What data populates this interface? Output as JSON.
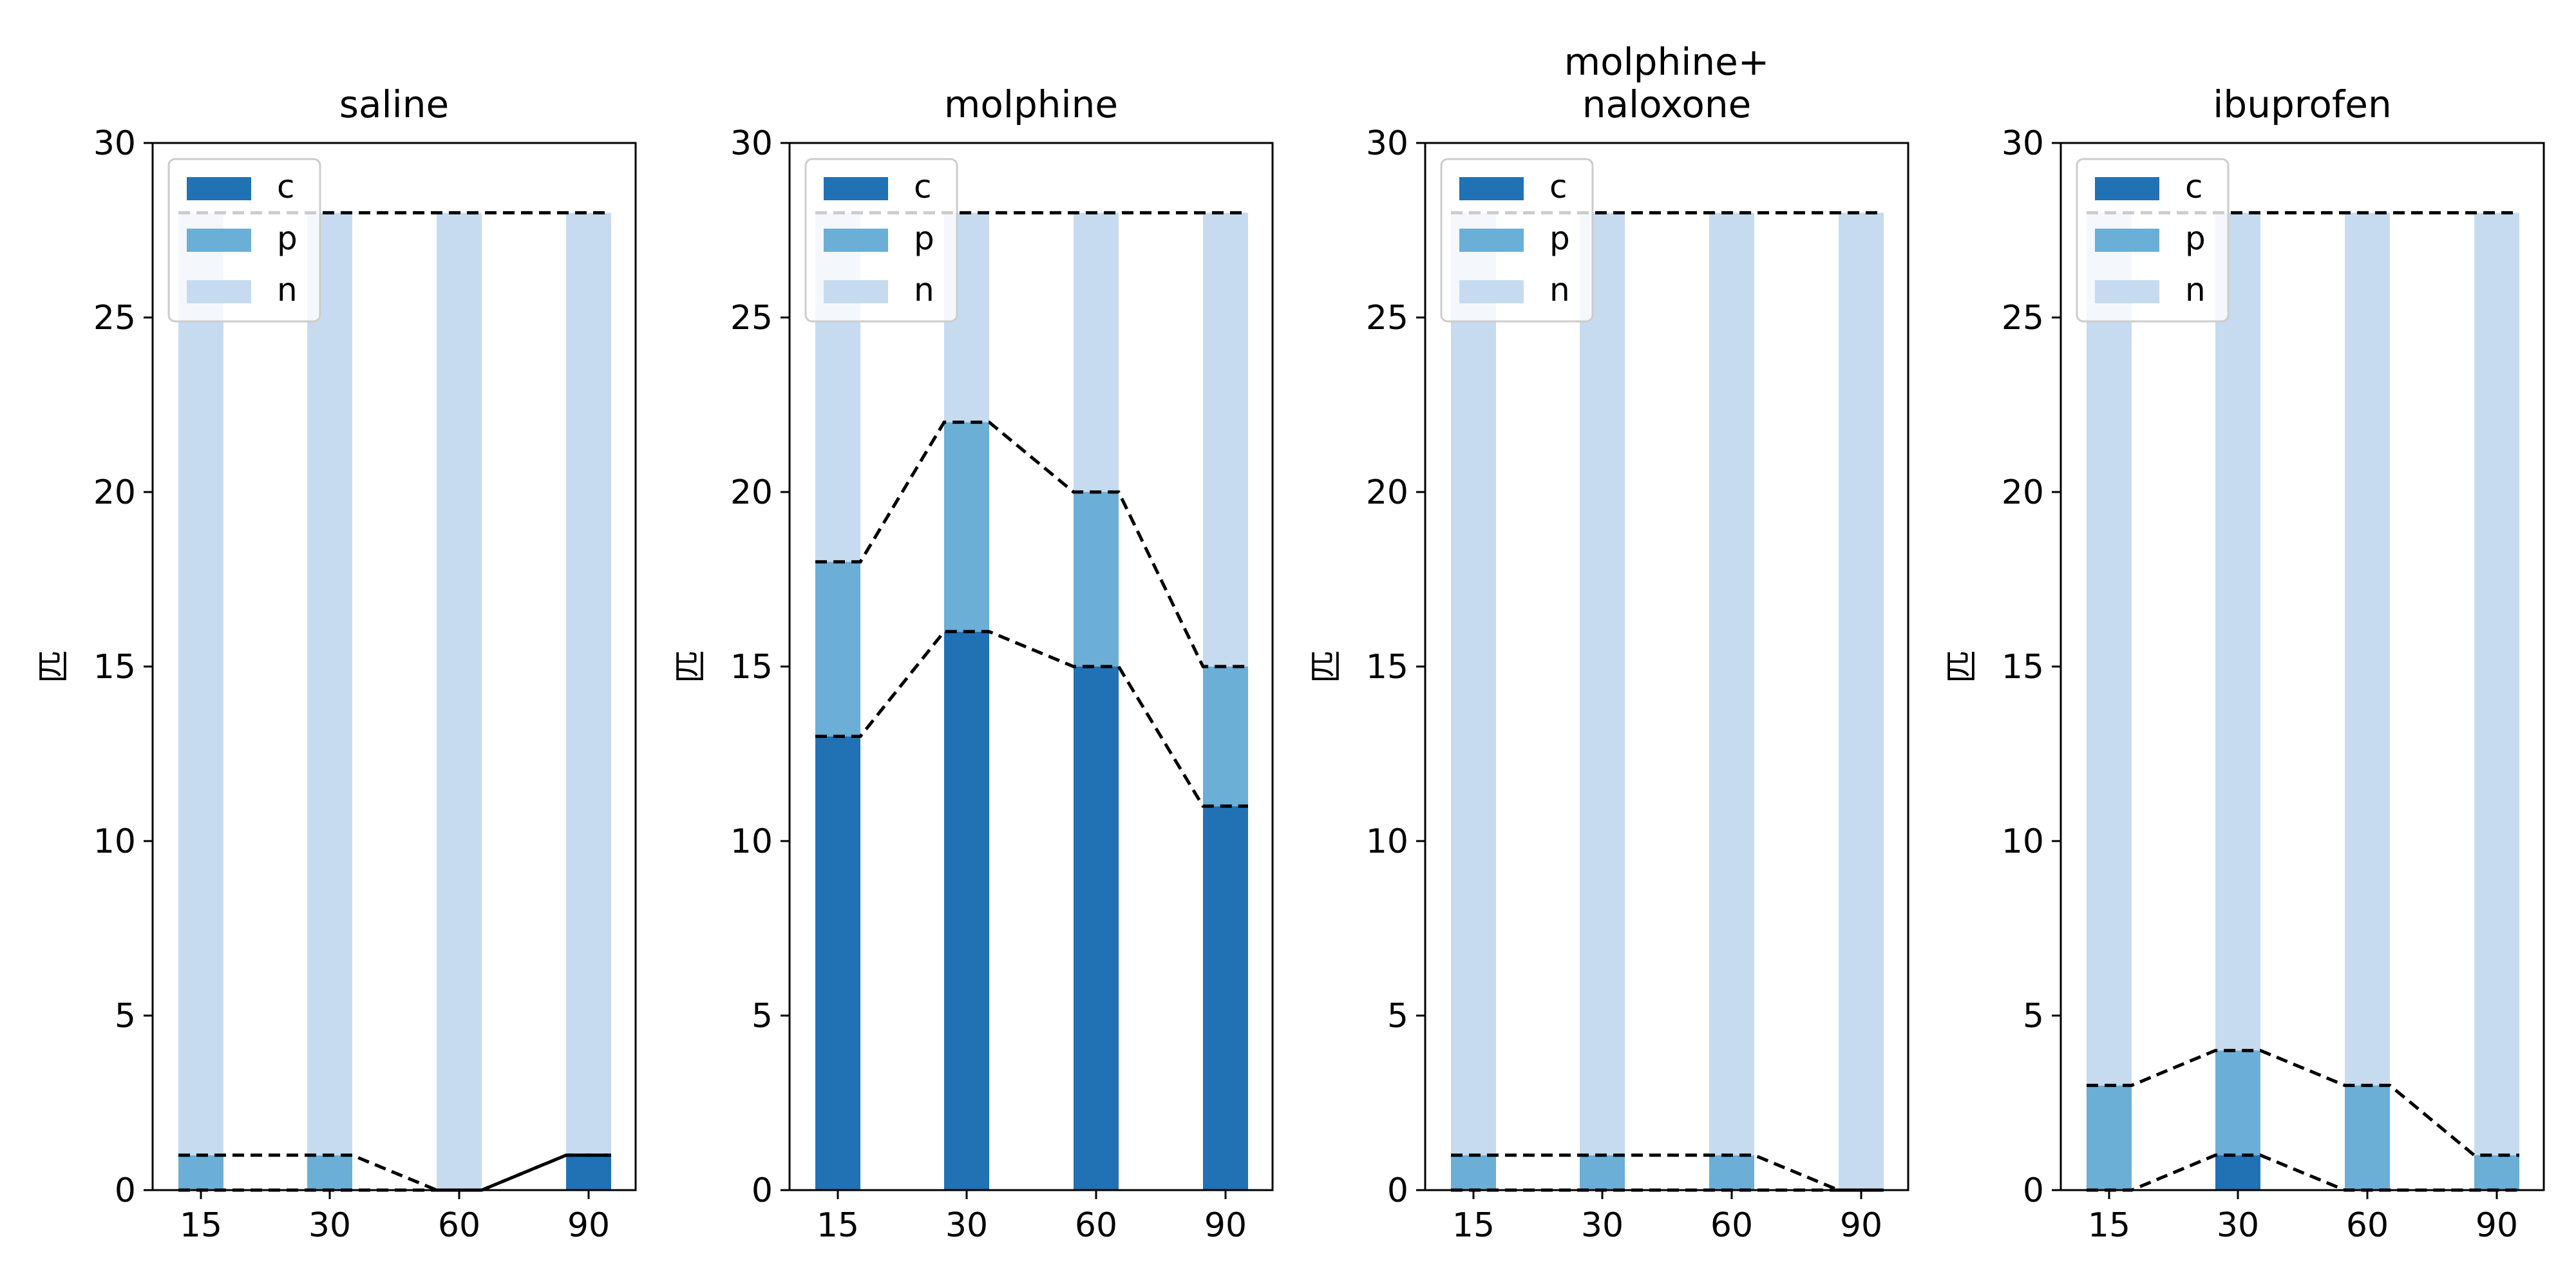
{
  "chart_data": [
    {
      "type": "bar",
      "stacked": true,
      "title_lines": [
        "saline"
      ],
      "ylabel": "匹",
      "categories": [
        "15",
        "30",
        "60",
        "90"
      ],
      "ylim": [
        0,
        30
      ],
      "yticks": [
        "0",
        "5",
        "10",
        "15",
        "20",
        "25",
        "30"
      ],
      "total": 28,
      "series": [
        {
          "name": "c",
          "values": [
            0,
            0,
            0,
            1
          ]
        },
        {
          "name": "p",
          "values": [
            1,
            1,
            0,
            0
          ]
        },
        {
          "name": "n",
          "values": [
            27,
            27,
            28,
            27
          ]
        }
      ],
      "legend": {
        "position": "upper-left",
        "entries": [
          "c",
          "p",
          "n"
        ]
      },
      "dashed_lines": "cumulative c, cumulative c+p, total"
    },
    {
      "type": "bar",
      "stacked": true,
      "title_lines": [
        "molphine"
      ],
      "ylabel": "匹",
      "categories": [
        "15",
        "30",
        "60",
        "90"
      ],
      "ylim": [
        0,
        30
      ],
      "yticks": [
        "0",
        "5",
        "10",
        "15",
        "20",
        "25",
        "30"
      ],
      "total": 28,
      "series": [
        {
          "name": "c",
          "values": [
            13,
            16,
            15,
            11
          ]
        },
        {
          "name": "p",
          "values": [
            5,
            6,
            5,
            4
          ]
        },
        {
          "name": "n",
          "values": [
            10,
            6,
            8,
            13
          ]
        }
      ],
      "legend": {
        "position": "upper-left",
        "entries": [
          "c",
          "p",
          "n"
        ]
      },
      "dashed_lines": "cumulative c, cumulative c+p, total"
    },
    {
      "type": "bar",
      "stacked": true,
      "title_lines": [
        "molphine+",
        "naloxone"
      ],
      "ylabel": "匹",
      "categories": [
        "15",
        "30",
        "60",
        "90"
      ],
      "ylim": [
        0,
        30
      ],
      "yticks": [
        "0",
        "5",
        "10",
        "15",
        "20",
        "25",
        "30"
      ],
      "total": 28,
      "series": [
        {
          "name": "c",
          "values": [
            0,
            0,
            0,
            0
          ]
        },
        {
          "name": "p",
          "values": [
            1,
            1,
            1,
            0
          ]
        },
        {
          "name": "n",
          "values": [
            27,
            27,
            27,
            28
          ]
        }
      ],
      "legend": {
        "position": "upper-left",
        "entries": [
          "c",
          "p",
          "n"
        ]
      },
      "dashed_lines": "cumulative c, cumulative c+p, total"
    },
    {
      "type": "bar",
      "stacked": true,
      "title_lines": [
        "ibuprofen"
      ],
      "ylabel": "匹",
      "categories": [
        "15",
        "30",
        "60",
        "90"
      ],
      "ylim": [
        0,
        30
      ],
      "yticks": [
        "0",
        "5",
        "10",
        "15",
        "20",
        "25",
        "30"
      ],
      "total": 28,
      "series": [
        {
          "name": "c",
          "values": [
            0,
            1,
            0,
            0
          ]
        },
        {
          "name": "p",
          "values": [
            3,
            3,
            3,
            1
          ]
        },
        {
          "name": "n",
          "values": [
            25,
            24,
            25,
            27
          ]
        }
      ],
      "legend": {
        "position": "upper-left",
        "entries": [
          "c",
          "p",
          "n"
        ]
      },
      "dashed_lines": "cumulative c, cumulative c+p, total"
    }
  ],
  "colors": {
    "c": "#2171b5",
    "p": "#6baed6",
    "n": "#c6dbef",
    "dashed_line": "#000000",
    "axes": "#000000",
    "legend_border": "#cccccc"
  }
}
